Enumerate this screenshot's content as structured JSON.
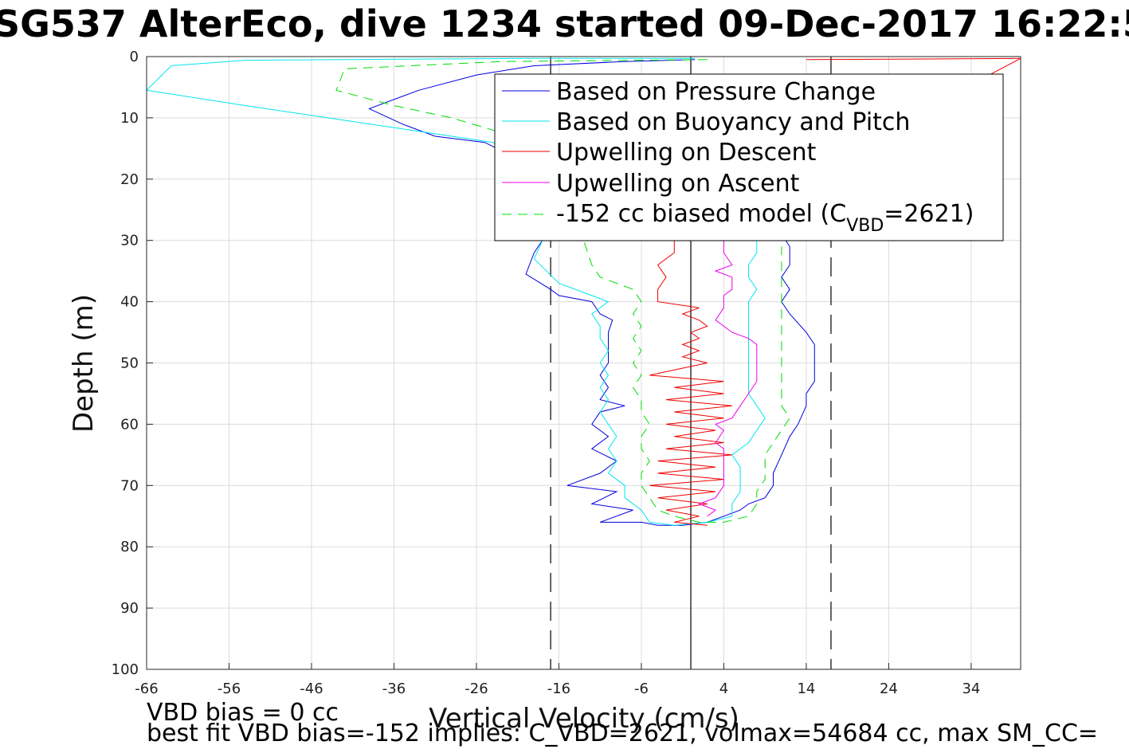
{
  "chart_data": {
    "type": "line",
    "title": "SG537 AlterEco, dive 1234 started 09-Dec-2017 16:22:5",
    "xlabel": "Vertical Velocity (cm/s)",
    "ylabel": "Depth (m)",
    "xlim": [
      -66,
      40
    ],
    "ylim": [
      0,
      100
    ],
    "y_reversed": true,
    "xticks": [
      -66,
      -56,
      -46,
      -36,
      -26,
      -16,
      -6,
      4,
      14,
      24,
      34
    ],
    "yticks": [
      0,
      10,
      20,
      30,
      40,
      50,
      60,
      70,
      80,
      90,
      100
    ],
    "grid": true,
    "legend_position": "top-right",
    "vlines": [
      {
        "x": 0,
        "style": "solid",
        "color": "#000000"
      },
      {
        "x": -17,
        "style": "dashed",
        "color": "#000000"
      },
      {
        "x": 17,
        "style": "dashed",
        "color": "#000000"
      }
    ],
    "series": [
      {
        "name": "Based on Pressure Change",
        "color": "#0000dd",
        "dash": "solid",
        "points": [
          [
            0.5,
            0.5
          ],
          [
            -8,
            0.8
          ],
          [
            -19,
            1.5
          ],
          [
            -26,
            3
          ],
          [
            -33,
            5.5
          ],
          [
            -39,
            8.5
          ],
          [
            -35,
            11
          ],
          [
            -31,
            13
          ],
          [
            -25,
            14
          ],
          [
            -22,
            16
          ],
          [
            -20,
            18
          ],
          [
            -19,
            22
          ],
          [
            -18,
            26
          ],
          [
            -18,
            30
          ],
          [
            -19,
            32
          ],
          [
            -20,
            35.5
          ],
          [
            -17,
            38
          ],
          [
            -16,
            39
          ],
          [
            -12,
            40
          ],
          [
            -11,
            42
          ],
          [
            -9.5,
            43
          ],
          [
            -10,
            45
          ],
          [
            -10,
            48
          ],
          [
            -10,
            50
          ],
          [
            -11,
            52
          ],
          [
            -10,
            54
          ],
          [
            -11,
            56
          ],
          [
            -8,
            57
          ],
          [
            -11,
            58
          ],
          [
            -12,
            60
          ],
          [
            -10,
            62
          ],
          [
            -12,
            64
          ],
          [
            -9,
            66
          ],
          [
            -11,
            68
          ],
          [
            -15,
            70
          ],
          [
            -9,
            71
          ],
          [
            -12,
            73
          ],
          [
            -7,
            74
          ],
          [
            -11,
            76
          ],
          [
            -6,
            76
          ],
          [
            -4,
            76.5
          ],
          [
            -1,
            76.5
          ],
          [
            2,
            76
          ],
          [
            4,
            75
          ],
          [
            6,
            74
          ],
          [
            7,
            73
          ],
          [
            9,
            72
          ],
          [
            10,
            70
          ],
          [
            10,
            68
          ],
          [
            11,
            65
          ],
          [
            12,
            62
          ],
          [
            13,
            60
          ],
          [
            14,
            57
          ],
          [
            14,
            55
          ],
          [
            15,
            53
          ],
          [
            15,
            50
          ],
          [
            15,
            47
          ],
          [
            14,
            45
          ],
          [
            12,
            42
          ],
          [
            11,
            40
          ],
          [
            12,
            38
          ],
          [
            11,
            36
          ],
          [
            12,
            34
          ],
          [
            12,
            31
          ],
          [
            11,
            29
          ]
        ]
      },
      {
        "name": "Based on Buoyancy and Pitch",
        "color": "#00e5ee",
        "dash": "solid",
        "points": [
          [
            0.5,
            0.3
          ],
          [
            -20,
            0.3
          ],
          [
            -54,
            0.6
          ],
          [
            -63,
            1.5
          ],
          [
            -66,
            5.5
          ],
          [
            -54,
            8
          ],
          [
            -44,
            10
          ],
          [
            -34,
            12
          ],
          [
            -24,
            14
          ],
          [
            -19,
            18
          ],
          [
            -18,
            24
          ],
          [
            -18,
            30
          ],
          [
            -19,
            33
          ],
          [
            -16,
            37
          ],
          [
            -12,
            39
          ],
          [
            -10,
            40
          ],
          [
            -12,
            42
          ],
          [
            -11,
            44
          ],
          [
            -11,
            46
          ],
          [
            -10,
            48
          ],
          [
            -11,
            50
          ],
          [
            -10,
            52
          ],
          [
            -11,
            54
          ],
          [
            -10,
            56
          ],
          [
            -11,
            58
          ],
          [
            -10,
            60
          ],
          [
            -9,
            62
          ],
          [
            -10,
            64
          ],
          [
            -9,
            66
          ],
          [
            -10,
            68
          ],
          [
            -8,
            70
          ],
          [
            -8,
            72
          ],
          [
            -6,
            74
          ],
          [
            -5,
            76
          ],
          [
            -2,
            76.5
          ],
          [
            2,
            76
          ],
          [
            5,
            75
          ],
          [
            5,
            73
          ],
          [
            6,
            71
          ],
          [
            6,
            69
          ],
          [
            6,
            67
          ],
          [
            5,
            65
          ],
          [
            7,
            63
          ],
          [
            8,
            61
          ],
          [
            9,
            59
          ],
          [
            8,
            57
          ],
          [
            7,
            55
          ],
          [
            7,
            52
          ],
          [
            7,
            49
          ],
          [
            7,
            46
          ],
          [
            7,
            44
          ],
          [
            7,
            42
          ],
          [
            7,
            40
          ],
          [
            8,
            38
          ],
          [
            7,
            36
          ],
          [
            7,
            34
          ],
          [
            8,
            32
          ],
          [
            8,
            30
          ]
        ]
      },
      {
        "name": "Upwelling on Descent",
        "color": "#ee0000",
        "dash": "solid",
        "points": [
          [
            14,
            0.5
          ],
          [
            40,
            0.3
          ],
          [
            -2,
            30
          ],
          [
            -2,
            32
          ],
          [
            -4,
            34
          ],
          [
            -3,
            36
          ],
          [
            -4,
            38
          ],
          [
            -4,
            40
          ],
          [
            1,
            41
          ],
          [
            -1,
            42
          ],
          [
            1,
            43
          ],
          [
            2,
            44
          ],
          [
            0,
            45
          ],
          [
            1,
            46
          ],
          [
            -1,
            47
          ],
          [
            1,
            48
          ],
          [
            -1,
            49
          ],
          [
            2,
            50
          ],
          [
            -5,
            52
          ],
          [
            4,
            53
          ],
          [
            -2,
            54
          ],
          [
            4,
            55
          ],
          [
            -3,
            56
          ],
          [
            5,
            57
          ],
          [
            -2,
            58
          ],
          [
            4,
            59
          ],
          [
            -3,
            60
          ],
          [
            3,
            61
          ],
          [
            -2,
            62
          ],
          [
            4,
            63
          ],
          [
            -3,
            64
          ],
          [
            5,
            65
          ],
          [
            -4,
            66
          ],
          [
            3,
            67
          ],
          [
            -4,
            68
          ],
          [
            4,
            69
          ],
          [
            -5,
            70
          ],
          [
            3,
            71
          ],
          [
            -4,
            72
          ],
          [
            2,
            73
          ],
          [
            -3,
            74
          ],
          [
            1,
            75
          ],
          [
            -2,
            76
          ],
          [
            2,
            76.5
          ]
        ]
      },
      {
        "name": "Upwelling on Ascent",
        "color": "#ee00ee",
        "dash": "solid",
        "points": [
          [
            2,
            75
          ],
          [
            3,
            74
          ],
          [
            1,
            73
          ],
          [
            3,
            72
          ],
          [
            4,
            70
          ],
          [
            4,
            68
          ],
          [
            4,
            66
          ],
          [
            4,
            64
          ],
          [
            3,
            63
          ],
          [
            4,
            61
          ],
          [
            3,
            60
          ],
          [
            5,
            59
          ],
          [
            6,
            57
          ],
          [
            7,
            55
          ],
          [
            8,
            53
          ],
          [
            8,
            51
          ],
          [
            8,
            49
          ],
          [
            8,
            47
          ],
          [
            7,
            46
          ],
          [
            5,
            45
          ],
          [
            3,
            43
          ],
          [
            4,
            41
          ],
          [
            4,
            40
          ],
          [
            4,
            39
          ],
          [
            5,
            38
          ],
          [
            5,
            36
          ],
          [
            3,
            35
          ],
          [
            5,
            34
          ],
          [
            4,
            32
          ],
          [
            4,
            30
          ]
        ]
      },
      {
        "name": "-152 cc biased model (C_VBD=2621)",
        "legend_label_main": "-152 cc biased model (C",
        "legend_label_sub": "VBD",
        "legend_label_end": "=2621)",
        "color": "#00dd00",
        "dash": "dashed",
        "points": [
          [
            2,
            0.5
          ],
          [
            -23,
            0.8
          ],
          [
            -42,
            2
          ],
          [
            -43,
            5.5
          ],
          [
            -36,
            8
          ],
          [
            -29,
            10
          ],
          [
            -24,
            12
          ],
          [
            -20,
            14
          ],
          [
            -17,
            18
          ],
          [
            -15,
            22
          ],
          [
            -14,
            26
          ],
          [
            -13,
            30
          ],
          [
            -12,
            34
          ],
          [
            -11,
            36
          ],
          [
            -7,
            38
          ],
          [
            -6,
            40
          ],
          [
            -7,
            42
          ],
          [
            -6,
            44
          ],
          [
            -7,
            46
          ],
          [
            -6,
            48
          ],
          [
            -7,
            50
          ],
          [
            -6,
            52
          ],
          [
            -7,
            54
          ],
          [
            -6,
            56
          ],
          [
            -6,
            58
          ],
          [
            -5,
            60
          ],
          [
            -6,
            62
          ],
          [
            -6,
            64
          ],
          [
            -5,
            66
          ],
          [
            -6,
            68
          ],
          [
            -6,
            70
          ],
          [
            -5,
            72
          ],
          [
            -4,
            74
          ],
          [
            -2,
            75
          ],
          [
            1,
            76
          ],
          [
            4,
            76
          ],
          [
            7,
            75
          ],
          [
            8,
            73
          ],
          [
            8,
            71
          ],
          [
            9,
            69
          ],
          [
            9,
            67
          ],
          [
            9,
            65
          ],
          [
            10,
            63
          ],
          [
            11,
            61
          ],
          [
            12,
            59
          ],
          [
            11,
            57
          ],
          [
            11,
            55
          ],
          [
            11,
            52
          ],
          [
            11,
            49
          ],
          [
            11,
            46
          ],
          [
            11,
            43
          ],
          [
            11,
            41
          ],
          [
            11,
            39
          ],
          [
            11,
            36
          ],
          [
            11,
            34
          ],
          [
            11,
            31
          ]
        ]
      }
    ]
  },
  "notes": {
    "bias": "VBD bias = 0 cc",
    "best_fit": "best fit VBD bias=-152 implies: C_VBD=2621, volmax=54684 cc, max SM_CC="
  }
}
